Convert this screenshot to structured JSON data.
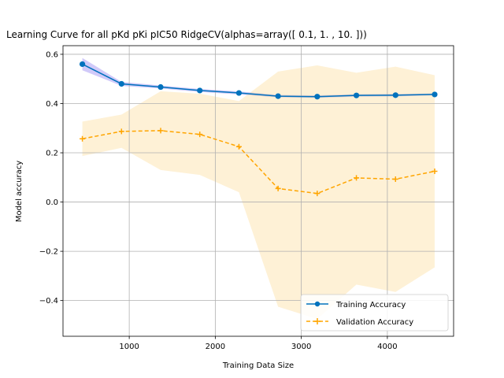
{
  "chart_data": {
    "type": "line",
    "title": "Learning Curve for all pKd pKi pIC50 RidgeCV(alphas=array([ 0.1,  1. , 10. ]))",
    "xlabel": "Training Data Size",
    "ylabel": "Model accuracy",
    "xlim": [
      230,
      4770
    ],
    "ylim": [
      -0.545,
      0.635
    ],
    "xticks": [
      1000,
      2000,
      3000,
      4000
    ],
    "yticks": [
      -0.4,
      -0.2,
      0.0,
      0.2,
      0.4,
      0.6
    ],
    "xtick_labels": [
      "1000",
      "2000",
      "3000",
      "4000"
    ],
    "ytick_labels": [
      "−0.4",
      "−0.2",
      "0.0",
      "0.2",
      "0.4",
      "0.6"
    ],
    "grid": true,
    "legend_position": "lower-right",
    "x": [
      455,
      910,
      1365,
      1820,
      2275,
      2730,
      3185,
      3640,
      4095,
      4550
    ],
    "series": [
      {
        "name": "Training Accuracy",
        "color": "#0072BD",
        "marker": "circle",
        "line_style": "solid",
        "values": [
          0.56,
          0.48,
          0.467,
          0.453,
          0.443,
          0.43,
          0.428,
          0.433,
          0.434,
          0.437
        ],
        "band_lower": [
          0.535,
          0.472,
          0.461,
          0.447,
          0.437,
          0.425,
          0.423,
          0.428,
          0.429,
          0.433
        ],
        "band_upper": [
          0.585,
          0.488,
          0.473,
          0.459,
          0.449,
          0.435,
          0.433,
          0.438,
          0.439,
          0.441
        ],
        "band_color": "#7b68ee"
      },
      {
        "name": "Validation Accuracy",
        "color": "#FFA500",
        "marker": "plus",
        "line_style": "dashed",
        "values": [
          0.257,
          0.287,
          0.29,
          0.275,
          0.225,
          0.055,
          0.035,
          0.098,
          0.093,
          0.125
        ],
        "band_lower": [
          0.187,
          0.22,
          0.13,
          0.11,
          0.04,
          -0.425,
          -0.475,
          -0.335,
          -0.365,
          -0.265
        ],
        "band_upper": [
          0.327,
          0.355,
          0.45,
          0.44,
          0.41,
          0.53,
          0.555,
          0.525,
          0.55,
          0.515
        ],
        "band_color": "#fbd78a"
      }
    ]
  }
}
